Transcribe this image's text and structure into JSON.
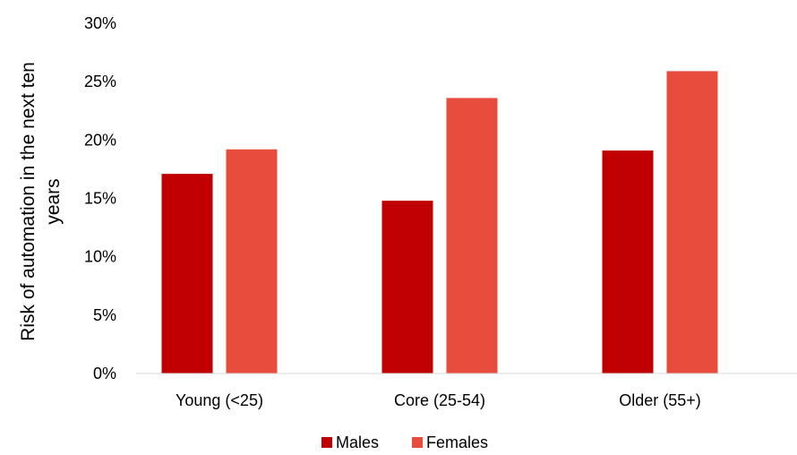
{
  "chart_data": {
    "type": "bar",
    "categories": [
      "Young (<25)",
      "Core (25-54)",
      "Older (55+)"
    ],
    "series": [
      {
        "name": "Males",
        "values": [
          17.1,
          14.8,
          19.1
        ],
        "color": "#c00000"
      },
      {
        "name": "Females",
        "values": [
          19.2,
          23.6,
          25.9
        ],
        "color": "#e84c3d"
      }
    ],
    "ylabel_line1": "Risk of automation in the next ten",
    "ylabel_line2": "years",
    "ylim": [
      0,
      30
    ],
    "y_ticks": [
      0,
      5,
      10,
      15,
      20,
      25,
      30
    ],
    "y_tick_labels": [
      "0%",
      "5%",
      "10%",
      "15%",
      "20%",
      "25%",
      "30%"
    ],
    "grid": false,
    "legend_position": "bottom"
  }
}
